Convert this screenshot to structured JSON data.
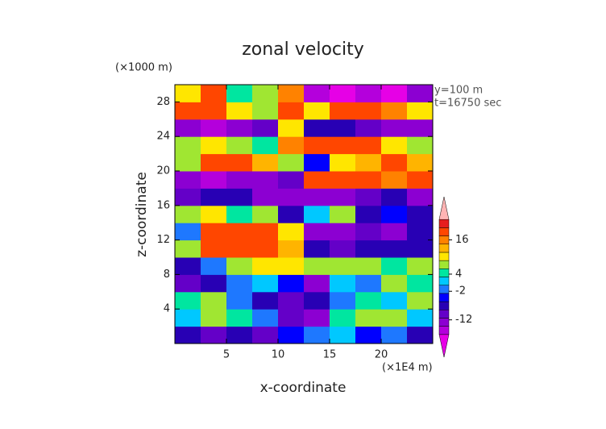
{
  "chart_data": {
    "type": "heatmap",
    "title": "zonal velocity",
    "x_label": "x-coordinate",
    "y_label": "z-coordinate",
    "x_unit": "(×1E4 m)",
    "y_unit": "(×1000 m)",
    "annotations": [
      "y=100 m",
      "t=16750 sec"
    ],
    "xlim": [
      0,
      25
    ],
    "xticks": [
      5,
      10,
      15,
      20
    ],
    "ylim": [
      0,
      30
    ],
    "yticks": [
      4,
      8,
      12,
      16,
      20,
      24,
      28
    ],
    "z": [
      [
        -8,
        -10,
        -6,
        -10,
        -4,
        -2,
        2,
        -4,
        0,
        -6
      ],
      [
        2,
        6,
        4,
        -2,
        -10,
        -12,
        4,
        8,
        6,
        2
      ],
      [
        4,
        6,
        0,
        -6,
        -10,
        -8,
        -2,
        4,
        2,
        6
      ],
      [
        -10,
        -8,
        -2,
        2,
        -4,
        -12,
        2,
        -2,
        8,
        4
      ],
      [
        -6,
        -2,
        6,
        10,
        10,
        6,
        8,
        6,
        4,
        6
      ],
      [
        6,
        20,
        20,
        20,
        14,
        -8,
        -10,
        -8,
        -6,
        -8
      ],
      [
        0,
        18,
        20,
        20,
        10,
        -12,
        -14,
        -10,
        -12,
        -6
      ],
      [
        8,
        10,
        4,
        6,
        -6,
        2,
        6,
        -6,
        -4,
        -8
      ],
      [
        -10,
        -8,
        -6,
        -12,
        -14,
        -12,
        -14,
        -10,
        -8,
        -12
      ],
      [
        -14,
        -16,
        -14,
        -12,
        -10,
        18,
        20,
        20,
        16,
        20
      ],
      [
        8,
        20,
        20,
        12,
        6,
        -5,
        10,
        12,
        18,
        12
      ],
      [
        6,
        10,
        8,
        4,
        15,
        20,
        18,
        20,
        10,
        8
      ],
      [
        -12,
        -15,
        -14,
        -10,
        10,
        -8,
        -6,
        -10,
        -14,
        -12
      ],
      [
        20,
        20,
        10,
        6,
        18,
        10,
        20,
        20,
        15,
        10
      ],
      [
        10,
        20,
        5,
        8,
        15,
        -16,
        -18,
        -15,
        -18,
        -12
      ]
    ],
    "colorbar": {
      "lim": [
        -20,
        26
      ],
      "ticks": [
        16,
        4,
        -2,
        -12
      ],
      "colors": [
        "#e600e6",
        "#b400dc",
        "#8c00d2",
        "#6400c8",
        "#2800b4",
        "#0000ff",
        "#1e78ff",
        "#00c8ff",
        "#00e6a0",
        "#a0e632",
        "#ffe600",
        "#ffb400",
        "#ff8200",
        "#ff4600",
        "#e61e1e",
        "#ffb4b4"
      ]
    }
  }
}
